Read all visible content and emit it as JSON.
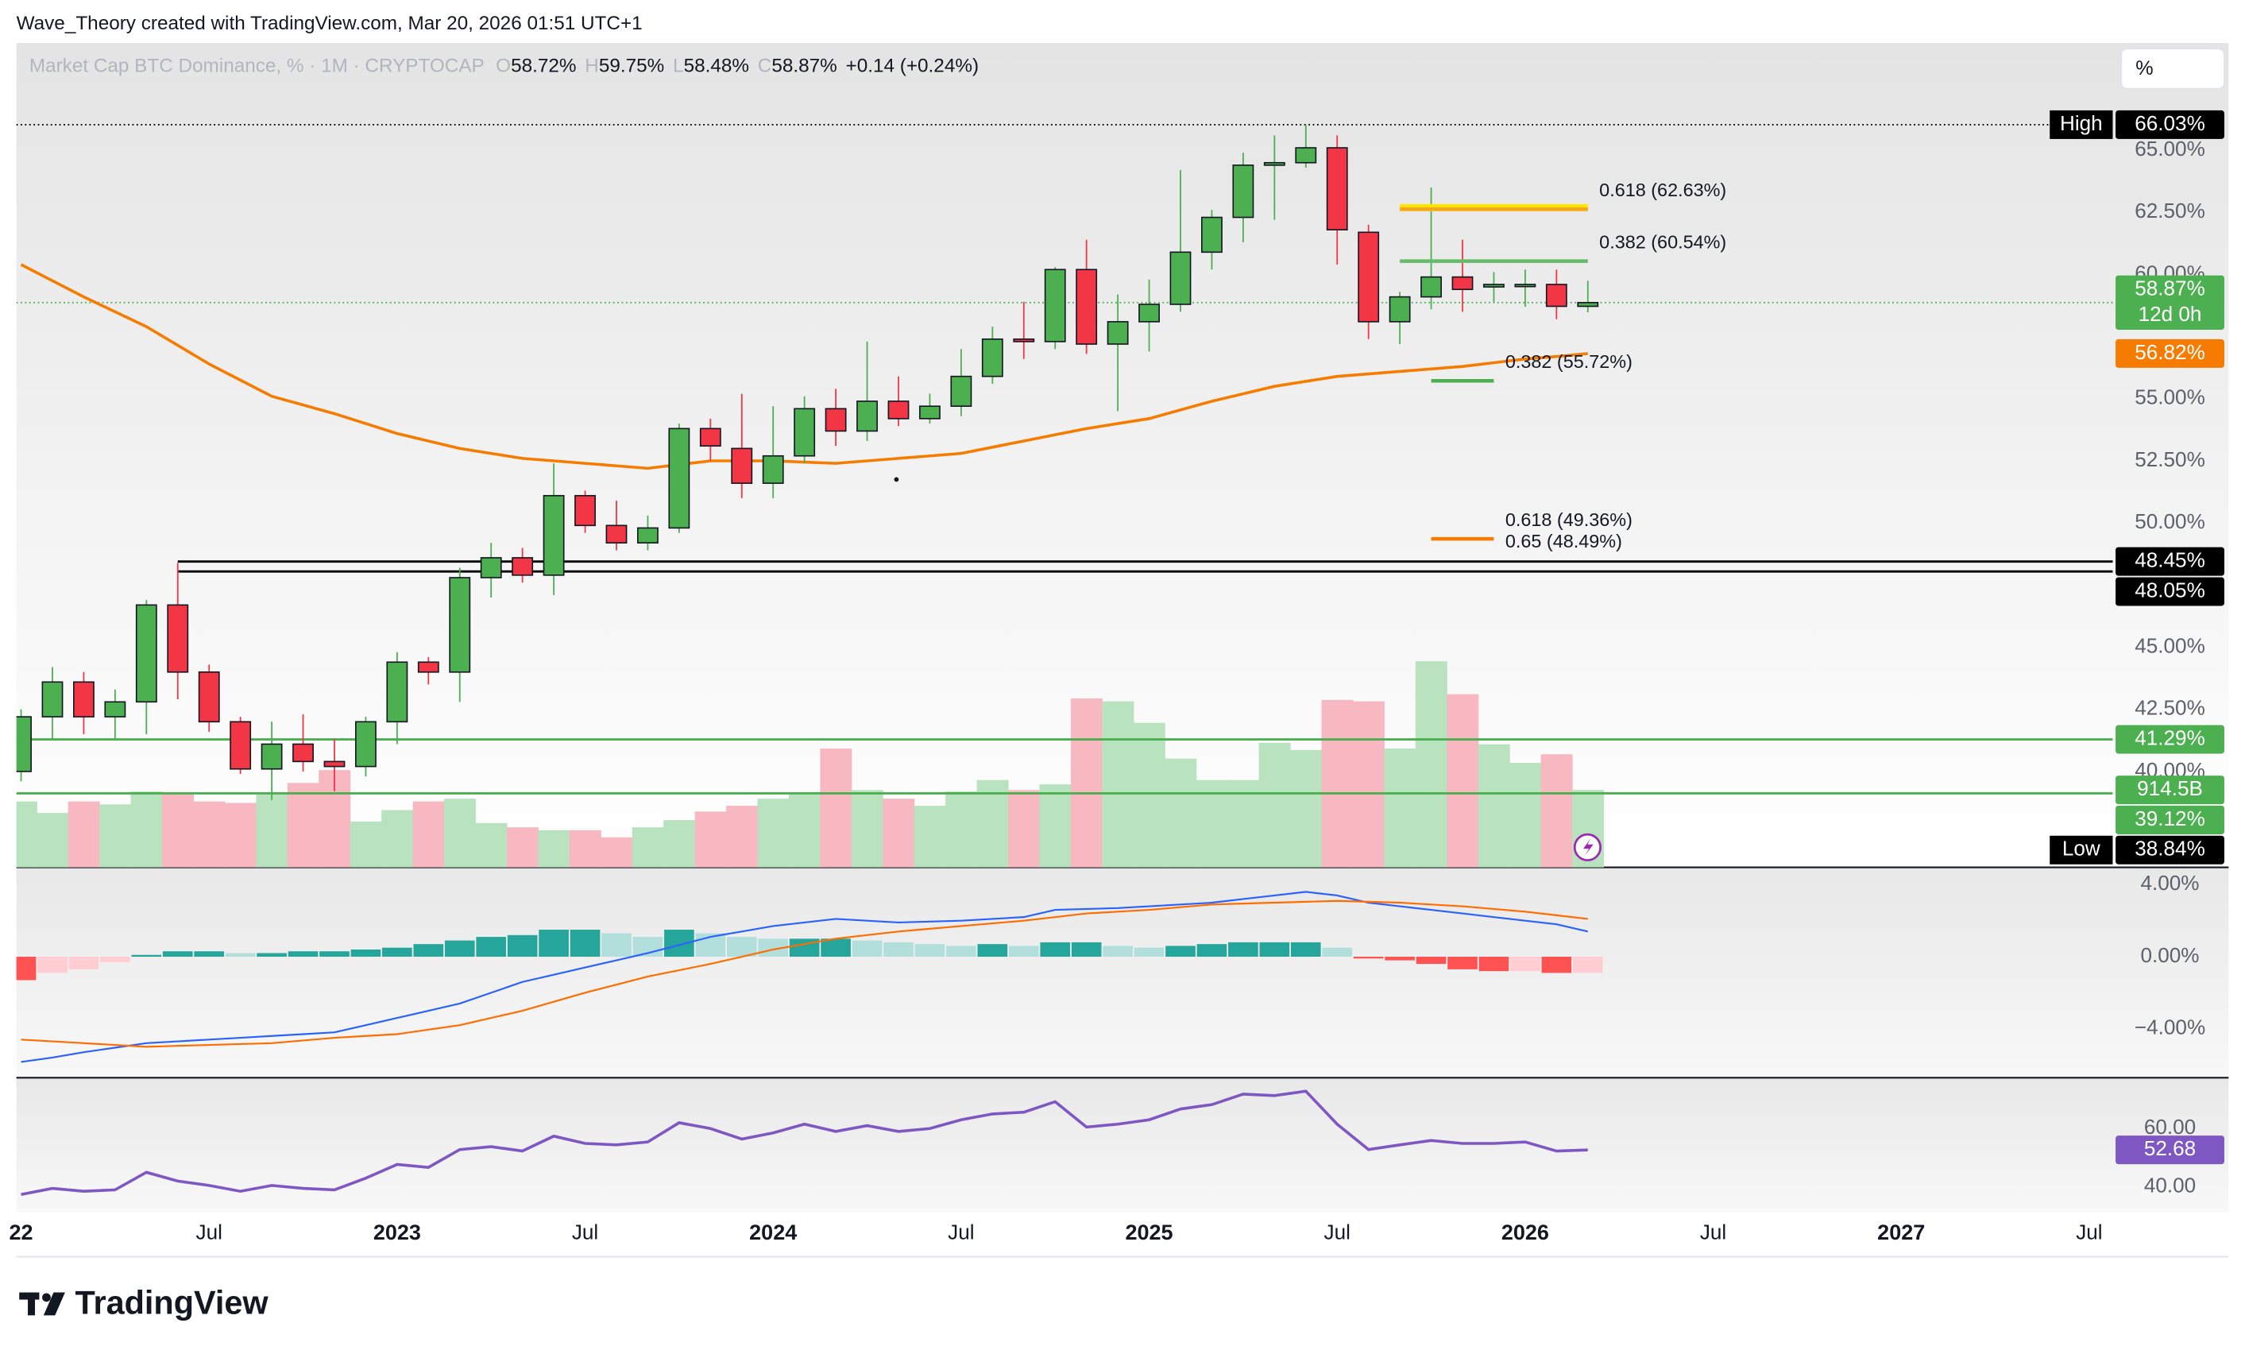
{
  "watermark": "Wave_Theory created with TradingView.com, Mar 20, 2026 01:51 UTC+1",
  "brand": "TradingView",
  "scale_mode": "%",
  "chart_data": [
    {
      "type": "candlestick",
      "title": "Market Cap BTC Dominance, % · 1M · CRYPTOCAP",
      "ohlc_legend": {
        "labels": [
          "O",
          "H",
          "L",
          "C"
        ],
        "values": [
          "58.72%",
          "59.75%",
          "58.48%",
          "58.87%"
        ],
        "change": "+0.14 (+0.24%)"
      },
      "open": [
        40.0,
        42.2,
        43.6,
        42.2,
        42.8,
        46.7,
        44.0,
        42.0,
        40.1,
        41.1,
        40.4,
        40.2,
        42.0,
        44.4,
        44.0,
        47.8,
        48.6,
        47.9,
        51.1,
        49.9,
        49.2,
        49.8,
        53.8,
        53.0,
        51.6,
        52.7,
        54.6,
        53.7,
        54.9,
        54.2,
        54.7,
        55.9,
        57.4,
        57.3,
        60.2,
        57.2,
        58.1,
        58.8,
        60.9,
        62.3,
        64.4,
        64.5,
        65.1,
        61.7,
        58.1,
        59.1,
        59.9,
        59.5,
        59.6,
        59.6,
        58.72
      ],
      "high": [
        42.5,
        44.2,
        44.0,
        43.3,
        46.9,
        48.4,
        44.3,
        42.2,
        42.0,
        42.3,
        41.3,
        42.2,
        44.8,
        44.6,
        48.2,
        49.2,
        49.0,
        52.4,
        51.3,
        50.9,
        50.3,
        54.0,
        54.2,
        55.2,
        54.7,
        55.1,
        55.4,
        57.3,
        55.9,
        55.2,
        57.0,
        57.9,
        58.9,
        60.3,
        61.4,
        59.2,
        59.8,
        64.2,
        62.6,
        64.9,
        65.6,
        66.03,
        65.6,
        62.0,
        59.3,
        63.5,
        61.4,
        60.1,
        60.2,
        60.2,
        59.75
      ],
      "low": [
        39.6,
        41.3,
        41.5,
        41.3,
        41.5,
        42.9,
        41.6,
        39.9,
        38.84,
        40.0,
        39.2,
        39.8,
        41.1,
        43.5,
        42.8,
        47.0,
        47.6,
        47.1,
        49.6,
        48.9,
        48.9,
        49.6,
        52.5,
        51.0,
        51.0,
        52.4,
        53.1,
        53.3,
        53.9,
        54.0,
        54.3,
        55.6,
        56.6,
        57.0,
        56.8,
        54.5,
        56.9,
        58.5,
        60.2,
        61.3,
        62.2,
        64.3,
        60.4,
        57.4,
        57.2,
        58.6,
        58.5,
        58.9,
        58.7,
        58.2,
        58.48
      ],
      "close": [
        42.2,
        43.6,
        42.2,
        42.8,
        46.7,
        44.0,
        42.0,
        40.1,
        41.1,
        40.4,
        40.2,
        42.0,
        44.4,
        44.0,
        47.8,
        48.6,
        47.9,
        51.1,
        49.9,
        49.2,
        49.8,
        53.8,
        53.1,
        51.6,
        52.7,
        54.6,
        53.7,
        54.9,
        54.2,
        54.7,
        55.9,
        57.4,
        57.3,
        60.2,
        57.2,
        58.1,
        58.8,
        60.9,
        62.3,
        64.4,
        64.5,
        65.1,
        61.8,
        58.1,
        59.1,
        59.9,
        59.4,
        59.6,
        59.6,
        58.72,
        58.87
      ],
      "up_color": "#4caf50",
      "down_color": "#f23645",
      "last_price": {
        "label": "58.87%",
        "countdown": "12d 0h",
        "color": "#4caf50"
      },
      "ma": {
        "color": "#f57c00",
        "label": "56.82%",
        "values": [
          60.4,
          59.75,
          59.1,
          58.5,
          57.9,
          57.15,
          56.4,
          55.75,
          55.1,
          54.75,
          54.4,
          54.0,
          53.6,
          53.3,
          53.0,
          52.8,
          52.6,
          52.5,
          52.4,
          52.3,
          52.2,
          52.35,
          52.5,
          52.5,
          52.5,
          52.45,
          52.4,
          52.5,
          52.6,
          52.7,
          52.8,
          53.05,
          53.3,
          53.55,
          53.8,
          54.0,
          54.2,
          54.55,
          54.9,
          55.2,
          55.5,
          55.7,
          55.9,
          56.0,
          56.1,
          56.2,
          56.3,
          56.45,
          56.6,
          56.7,
          56.82
        ]
      },
      "volume": {
        "label": "914.5B",
        "up_color": "#b9e2bf",
        "down_color": "#f7b8c1",
        "values": [
          778,
          642,
          778,
          744,
          896,
          862,
          778,
          761,
          862,
          997,
          1149,
          541,
          676,
          778,
          811,
          524,
          473,
          439,
          439,
          355,
          473,
          558,
          659,
          727,
          811,
          862,
          1403,
          913,
          811,
          727,
          896,
          1031,
          913,
          980,
          1994,
          1960,
          1707,
          1284,
          1031,
          1031,
          1470,
          1386,
          1977,
          1960,
          1403,
          2434,
          2045,
          1453,
          1234,
          1335,
          914.5
        ]
      },
      "price_labels": [
        {
          "value": 66.03,
          "label": "66.03%",
          "tag": "High",
          "color": "#000000",
          "line": "dotted"
        },
        {
          "value": 48.45,
          "label": "48.45%",
          "color": "#000000",
          "line": "solid",
          "from": 5
        },
        {
          "value": 48.05,
          "label": "48.05%",
          "color": "#000000",
          "line": "solid",
          "from": 5
        },
        {
          "value": 41.29,
          "label": "41.29%",
          "color": "#4caf50",
          "line": "solid"
        },
        {
          "value": 39.12,
          "label": "39.12%",
          "color": "#4caf50",
          "line": "solid"
        },
        {
          "value": 38.84,
          "label": "38.84%",
          "tag": "Low",
          "color": "#000000"
        }
      ],
      "fib": [
        {
          "label": "0.618 (62.63%)",
          "value": 62.63,
          "from": 44,
          "to": 50,
          "color": "#f5a623",
          "highlight": "#ffe600"
        },
        {
          "label": "0.382 (60.54%)",
          "value": 60.54,
          "from": 44,
          "to": 50,
          "color": "#66bb6a"
        },
        {
          "label": "0.382 (55.72%)",
          "value": 55.72,
          "from": 45,
          "to": 47,
          "color": "#4caf50"
        },
        {
          "label": "0.618 (49.36%)",
          "value": 49.36,
          "from": 45,
          "to": 47,
          "color": "#f57c00"
        },
        {
          "label": "0.65 (48.49%)",
          "value": 48.49,
          "from": 45,
          "to": 47,
          "color": "#f5d36b",
          "line": false
        }
      ],
      "ylim": [
        36.14,
        69.32
      ],
      "yticks": [
        {
          "value": 65,
          "label": "65.00%"
        },
        {
          "value": 62.5,
          "label": "62.50%"
        },
        {
          "value": 60,
          "label": "60.00%"
        },
        {
          "value": 55,
          "label": "55.00%"
        },
        {
          "value": 52.5,
          "label": "52.50%"
        },
        {
          "value": 50,
          "label": "50.00%"
        },
        {
          "value": 45,
          "label": "45.00%"
        },
        {
          "value": 42.5,
          "label": "42.50%"
        },
        {
          "value": 40,
          "label": "40.00%"
        }
      ],
      "xlim": [
        -0.15,
        66.75
      ],
      "xticks": [
        {
          "value": 0,
          "label": "22"
        },
        {
          "value": 6,
          "label": "Jul"
        },
        {
          "value": 12,
          "label": "2023"
        },
        {
          "value": 18,
          "label": "Jul"
        },
        {
          "value": 24,
          "label": "2024"
        },
        {
          "value": 30,
          "label": "Jul"
        },
        {
          "value": 36,
          "label": "2025"
        },
        {
          "value": 42,
          "label": "Jul"
        },
        {
          "value": 48,
          "label": "2026"
        },
        {
          "value": 54,
          "label": "Jul"
        },
        {
          "value": 60,
          "label": "2027"
        },
        {
          "value": 66,
          "label": "Jul"
        }
      ]
    },
    {
      "type": "macd",
      "histogram": [
        -1.3,
        -0.9,
        -0.7,
        -0.3,
        0.1,
        0.3,
        0.3,
        0.2,
        0.2,
        0.3,
        0.3,
        0.4,
        0.5,
        0.7,
        0.9,
        1.1,
        1.2,
        1.5,
        1.5,
        1.3,
        1.1,
        1.5,
        1.3,
        1.1,
        1.0,
        1.0,
        1.0,
        0.9,
        0.8,
        0.7,
        0.6,
        0.7,
        0.6,
        0.8,
        0.8,
        0.6,
        0.5,
        0.6,
        0.7,
        0.8,
        0.8,
        0.8,
        0.5,
        -0.1,
        -0.2,
        -0.4,
        -0.7,
        -0.8,
        -0.8,
        -0.9,
        -0.9
      ],
      "hist_colors": {
        "grow_above": "#26a69a",
        "fall_above": "#b2dfdb",
        "grow_below": "#ffcdd2",
        "fall_below": "#ff5252"
      },
      "macd": {
        "color": "#2962ff",
        "values": [
          -5.84,
          -5.6,
          -5.3,
          -5.05,
          -4.8,
          -4.7,
          -4.6,
          -4.5,
          -4.4,
          -4.3,
          -4.2,
          -3.8,
          -3.4,
          -3.0,
          -2.6,
          -2.0,
          -1.4,
          -1.0,
          -0.6,
          -0.2,
          0.2,
          0.65,
          1.1,
          1.4,
          1.7,
          1.9,
          2.1,
          2.0,
          1.9,
          1.95,
          2.0,
          2.1,
          2.2,
          2.6,
          2.65,
          2.7,
          2.8,
          2.9,
          3.0,
          3.2,
          3.4,
          3.6,
          3.4,
          3.0,
          2.8,
          2.6,
          2.4,
          2.2,
          2.0,
          1.8,
          1.4
        ]
      },
      "signal": {
        "color": "#ff6d00",
        "values": [
          -4.6,
          -4.7,
          -4.8,
          -4.9,
          -5.0,
          -4.95,
          -4.9,
          -4.85,
          -4.8,
          -4.65,
          -4.5,
          -4.4,
          -4.3,
          -4.05,
          -3.8,
          -3.4,
          -3.0,
          -2.5,
          -2.0,
          -1.55,
          -1.1,
          -0.75,
          -0.4,
          0.0,
          0.4,
          0.7,
          1.0,
          1.2,
          1.4,
          1.55,
          1.7,
          1.85,
          2.0,
          2.2,
          2.4,
          2.5,
          2.6,
          2.75,
          2.9,
          2.95,
          3.0,
          3.05,
          3.1,
          3.05,
          3.0,
          2.9,
          2.8,
          2.65,
          2.5,
          2.3,
          2.1
        ]
      },
      "ylim": [
        -6.72,
        4.96
      ],
      "yticks": [
        {
          "value": 4,
          "label": "4.00%"
        },
        {
          "value": 0,
          "label": "0.00%"
        },
        {
          "value": -4,
          "label": "−4.00%"
        }
      ]
    },
    {
      "type": "line",
      "color": "#7e57c2",
      "values": [
        37.4,
        39.5,
        38.5,
        39,
        45,
        42,
        40.5,
        38.5,
        40.5,
        39.5,
        39,
        43,
        47.7,
        46.7,
        52.8,
        53.8,
        52.3,
        57.4,
        54.9,
        54.4,
        55.4,
        62,
        60,
        56.4,
        58.5,
        61.5,
        59,
        61,
        59,
        60,
        63,
        65,
        65.6,
        69.2,
        60.5,
        61.5,
        63,
        66.7,
        68.2,
        71.8,
        71.3,
        72.8,
        61.5,
        52.8,
        54.4,
        55.9,
        54.9,
        54.9,
        55.4,
        52.3,
        52.68
      ],
      "last_label": "52.68",
      "ylim": [
        31.3,
        77.4
      ],
      "yticks": [
        {
          "value": 60,
          "label": "60.00"
        },
        {
          "value": 40,
          "label": "40.00"
        }
      ]
    }
  ]
}
